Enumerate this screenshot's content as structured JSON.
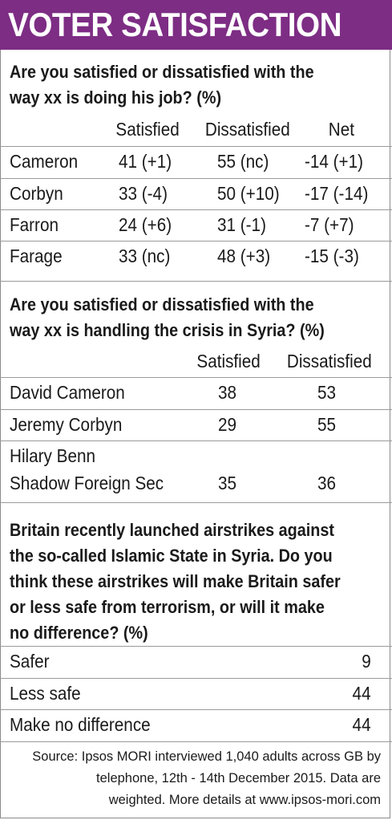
{
  "title": "VOTER SATISFACTION",
  "colors": {
    "banner": "#7d2d84",
    "banner_text": "#ffffff"
  },
  "chart_data": [
    {
      "type": "table",
      "title": "Are you satisfied or dissatisfied with the way xx is doing his job? (%)",
      "columns": [
        "Satisfied",
        "Dissatisfied",
        "Net"
      ],
      "rows": [
        {
          "label": "Cameron",
          "satisfied": "41 (+1)",
          "dissatisfied": "55 (nc)",
          "net": "-14  (+1)"
        },
        {
          "label": "Corbyn",
          "satisfied": "33 (-4)",
          "dissatisfied": "50 (+10)",
          "net": "-17  (-14)"
        },
        {
          "label": "Farron",
          "satisfied": "24 (+6)",
          "dissatisfied": "31 (-1)",
          "net": "-7  (+7)"
        },
        {
          "label": "Farage",
          "satisfied": "33 (nc)",
          "dissatisfied": "48 (+3)",
          "net": "-15  (-3)"
        }
      ]
    },
    {
      "type": "table",
      "title": "Are you satisfied or dissatisfied with the way xx is handling the crisis in Syria? (%)",
      "columns": [
        "Satisfied",
        "Dissatisfied"
      ],
      "rows": [
        {
          "label": "David Cameron",
          "label2": "",
          "satisfied": "38",
          "dissatisfied": "53"
        },
        {
          "label": "Jeremy Corbyn",
          "label2": "",
          "satisfied": "29",
          "dissatisfied": "55"
        },
        {
          "label": "Hilary Benn",
          "label2": "Shadow Foreign Sec",
          "satisfied": "35",
          "dissatisfied": "36"
        }
      ]
    },
    {
      "type": "table",
      "title": "Britain recently launched airstrikes against the so-called Islamic State in Syria. Do you think these airstrikes will make Britain safer or less safe from terrorism, or will it make no difference? (%)",
      "rows": [
        {
          "label": "Safer",
          "value": "9"
        },
        {
          "label": "Less safe",
          "value": "44"
        },
        {
          "label": "Make no difference",
          "value": "44"
        }
      ]
    }
  ],
  "source": {
    "line1": "Source: Ipsos MORI interviewed 1,040 adults across GB by",
    "line2": "telephone, 12th - 14th December 2015.  Data are",
    "line3": "weighted. More details at www.ipsos-mori.com"
  }
}
